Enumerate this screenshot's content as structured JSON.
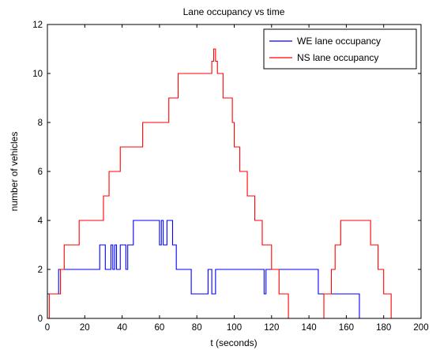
{
  "chart_data": {
    "type": "line",
    "title": "Lane occupancy vs time",
    "xlabel": "t (seconds)",
    "ylabel": "number of vehicles",
    "xlim": [
      0,
      200
    ],
    "ylim": [
      0,
      12
    ],
    "xticks": [
      0,
      20,
      40,
      60,
      80,
      100,
      120,
      140,
      160,
      180,
      200
    ],
    "yticks": [
      0,
      2,
      4,
      6,
      8,
      10,
      12
    ],
    "grid": false,
    "legend_position": "top-right",
    "series": [
      {
        "name": "WE lane occupancy",
        "color": "#0000ff",
        "points": [
          [
            0,
            1
          ],
          [
            6,
            1
          ],
          [
            6,
            2
          ],
          [
            28,
            2
          ],
          [
            28,
            3
          ],
          [
            31,
            3
          ],
          [
            31,
            2
          ],
          [
            34,
            2
          ],
          [
            34,
            3
          ],
          [
            35,
            3
          ],
          [
            35,
            2
          ],
          [
            36,
            2
          ],
          [
            36,
            3
          ],
          [
            37,
            3
          ],
          [
            37,
            2
          ],
          [
            39,
            2
          ],
          [
            39,
            3
          ],
          [
            42,
            3
          ],
          [
            42,
            2
          ],
          [
            43,
            2
          ],
          [
            43,
            3
          ],
          [
            46,
            3
          ],
          [
            46,
            4
          ],
          [
            60,
            4
          ],
          [
            60,
            3
          ],
          [
            61,
            3
          ],
          [
            61,
            4
          ],
          [
            62,
            4
          ],
          [
            62,
            3
          ],
          [
            64,
            3
          ],
          [
            64,
            4
          ],
          [
            67,
            4
          ],
          [
            67,
            3
          ],
          [
            69,
            3
          ],
          [
            69,
            2
          ],
          [
            77,
            2
          ],
          [
            77,
            1
          ],
          [
            86,
            1
          ],
          [
            86,
            2
          ],
          [
            88,
            2
          ],
          [
            88,
            1
          ],
          [
            90,
            1
          ],
          [
            90,
            2
          ],
          [
            116,
            2
          ],
          [
            116,
            1
          ],
          [
            117,
            1
          ],
          [
            117,
            2
          ],
          [
            145,
            2
          ],
          [
            145,
            1
          ],
          [
            167,
            1
          ],
          [
            167,
            0
          ],
          [
            200,
            0
          ]
        ]
      },
      {
        "name": "NS lane occupancy",
        "color": "#ff0000",
        "points": [
          [
            0,
            0
          ],
          [
            1,
            0
          ],
          [
            1,
            1
          ],
          [
            7,
            1
          ],
          [
            7,
            2
          ],
          [
            9,
            2
          ],
          [
            9,
            3
          ],
          [
            17,
            3
          ],
          [
            17,
            4
          ],
          [
            30,
            4
          ],
          [
            30,
            5
          ],
          [
            33,
            5
          ],
          [
            33,
            6
          ],
          [
            39,
            6
          ],
          [
            39,
            7
          ],
          [
            51,
            7
          ],
          [
            51,
            8
          ],
          [
            65,
            8
          ],
          [
            65,
            9
          ],
          [
            70,
            9
          ],
          [
            70,
            10
          ],
          [
            88,
            10
          ],
          [
            88,
            10.5
          ],
          [
            89,
            10.5
          ],
          [
            89,
            11
          ],
          [
            90,
            11
          ],
          [
            90,
            10.5
          ],
          [
            91,
            10.5
          ],
          [
            91,
            10
          ],
          [
            94,
            10
          ],
          [
            94,
            9
          ],
          [
            99,
            9
          ],
          [
            99,
            8
          ],
          [
            100,
            8
          ],
          [
            100,
            7
          ],
          [
            103,
            7
          ],
          [
            103,
            6
          ],
          [
            107,
            6
          ],
          [
            107,
            5
          ],
          [
            111,
            5
          ],
          [
            111,
            4
          ],
          [
            115,
            4
          ],
          [
            115,
            3
          ],
          [
            120,
            3
          ],
          [
            120,
            2
          ],
          [
            124,
            2
          ],
          [
            124,
            1
          ],
          [
            129,
            1
          ],
          [
            129,
            0
          ],
          [
            148,
            0
          ],
          [
            148,
            1
          ],
          [
            152,
            1
          ],
          [
            152,
            2
          ],
          [
            154,
            2
          ],
          [
            154,
            3
          ],
          [
            157,
            3
          ],
          [
            157,
            4
          ],
          [
            173,
            4
          ],
          [
            173,
            3
          ],
          [
            177,
            3
          ],
          [
            177,
            2
          ],
          [
            180,
            2
          ],
          [
            180,
            1
          ],
          [
            184,
            1
          ],
          [
            184,
            0
          ],
          [
            200,
            0
          ]
        ]
      }
    ]
  }
}
